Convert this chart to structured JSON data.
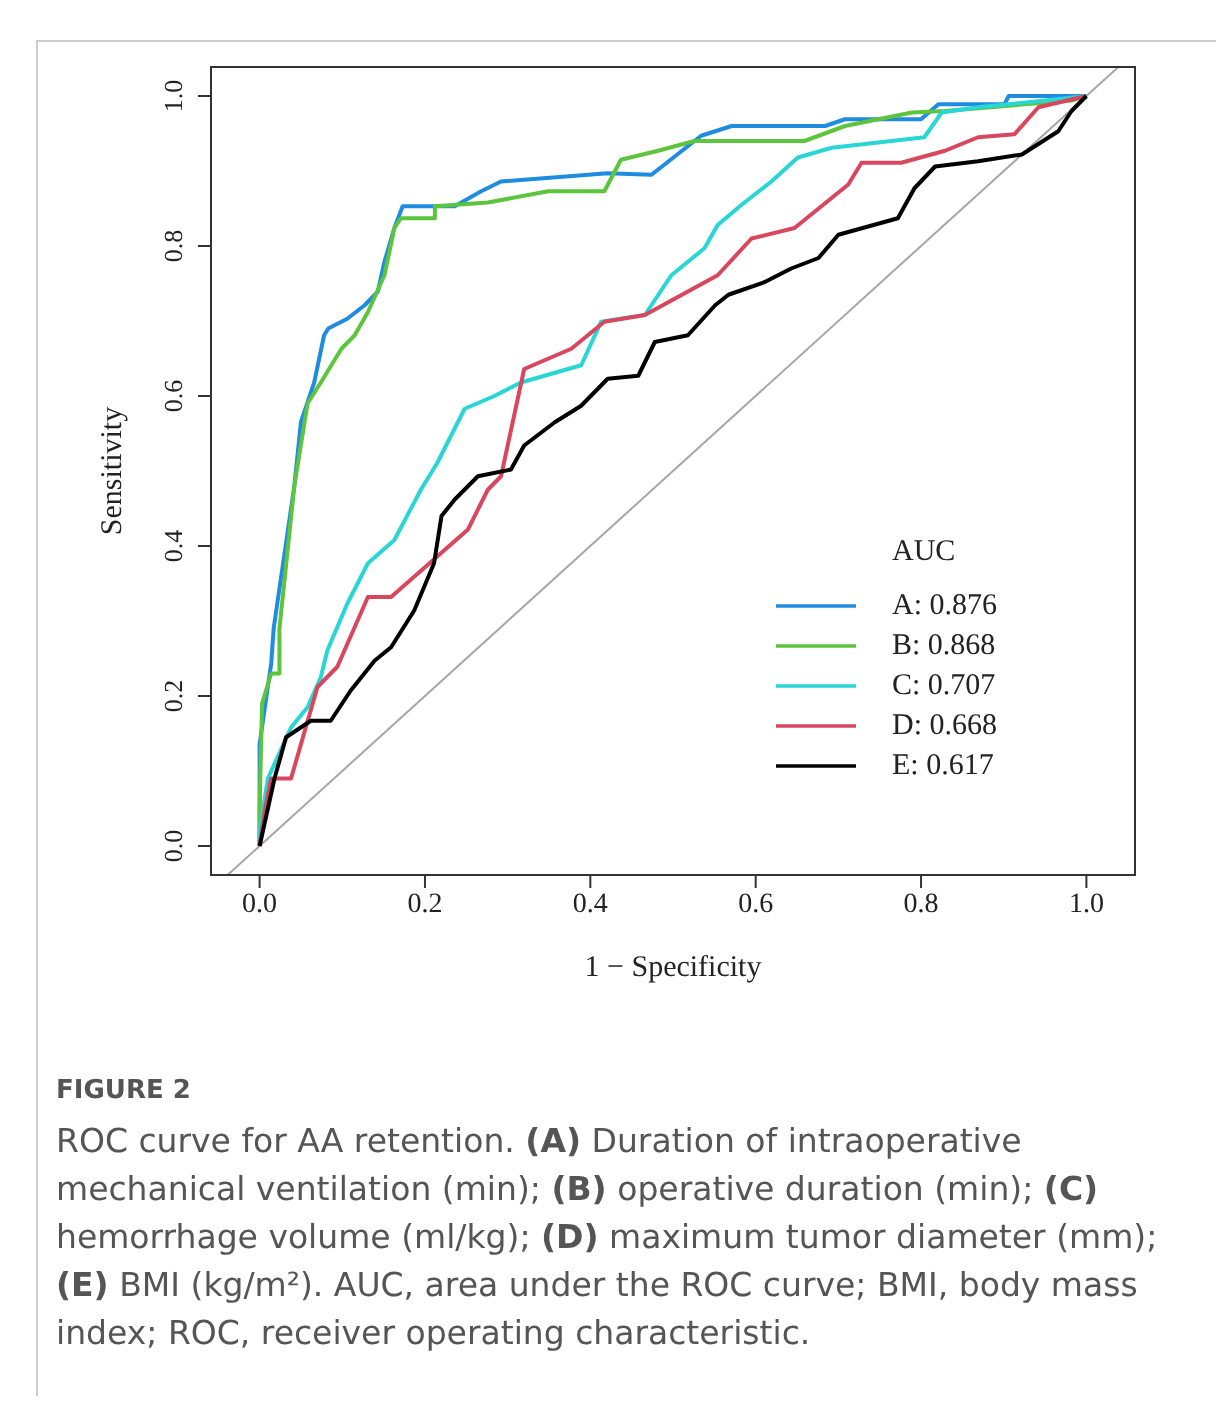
{
  "chart_data": {
    "type": "line",
    "xlabel": "1 − Specificity",
    "ylabel": "Sensitivity",
    "legend_title": "AUC",
    "legend": "bottom right",
    "grid": false,
    "marker": "none",
    "line_style": "solid",
    "xlim": [
      -0.06,
      1.06
    ],
    "ylim": [
      -0.04,
      1.04
    ],
    "xticks": [
      {
        "value": 0,
        "label": "0.0"
      },
      {
        "value": 0.2,
        "label": "0.2"
      },
      {
        "value": 0.4,
        "label": "0.4"
      },
      {
        "value": 0.6,
        "label": "0.6"
      },
      {
        "value": 0.8,
        "label": "0.8"
      },
      {
        "value": 1,
        "label": "1.0"
      }
    ],
    "yticks": [
      {
        "value": 0,
        "label": "0.0"
      },
      {
        "value": 0.2,
        "label": "0.2"
      },
      {
        "value": 0.4,
        "label": "0.4"
      },
      {
        "value": 0.6,
        "label": "0.6"
      },
      {
        "value": 0.8,
        "label": "0.8"
      },
      {
        "value": 1,
        "label": "1.0"
      }
    ],
    "series": [
      {
        "color": "#a6a6a6",
        "x": [
          -0.04,
          1.04
        ],
        "values": [
          -0.04,
          1.04
        ]
      },
      {
        "name": "A: 0.876",
        "color": "#1f8ce0",
        "x": [
          0,
          0,
          0,
          0.014,
          0.017,
          0.032,
          0.042,
          0.05,
          0.066,
          0.078,
          0.083,
          0.106,
          0.127,
          0.143,
          0.151,
          0.163,
          0.173,
          0.236,
          0.268,
          0.292,
          0.421,
          0.474,
          0.534,
          0.571,
          0.684,
          0.708,
          0.8,
          0.821,
          0.901,
          0.906,
          1.0
        ],
        "values": [
          0,
          0.03,
          0.136,
          0.243,
          0.29,
          0.404,
          0.48,
          0.565,
          0.618,
          0.681,
          0.69,
          0.703,
          0.721,
          0.739,
          0.779,
          0.824,
          0.853,
          0.853,
          0.873,
          0.886,
          0.897,
          0.895,
          0.947,
          0.96,
          0.96,
          0.969,
          0.969,
          0.989,
          0.989,
          1.0,
          1.0
        ]
      },
      {
        "name": "B: 0.868",
        "color": "#5cc43d",
        "x": [
          0,
          0,
          0.003,
          0.014,
          0.024,
          0.024,
          0.042,
          0.058,
          0.074,
          0.099,
          0.115,
          0.131,
          0.151,
          0.163,
          0.171,
          0.212,
          0.212,
          0.276,
          0.349,
          0.417,
          0.437,
          0.482,
          0.526,
          0.659,
          0.708,
          0.789,
          0.829,
          0.982,
          1.0
        ],
        "values": [
          0,
          0.05,
          0.19,
          0.23,
          0.23,
          0.29,
          0.48,
          0.59,
          0.618,
          0.663,
          0.681,
          0.712,
          0.761,
          0.824,
          0.837,
          0.837,
          0.853,
          0.858,
          0.873,
          0.873,
          0.915,
          0.927,
          0.94,
          0.94,
          0.96,
          0.978,
          0.98,
          0.994,
          1.0
        ]
      },
      {
        "name": "C: 0.707",
        "color": "#29d6d6",
        "x": [
          0,
          0,
          0.01,
          0.038,
          0.058,
          0.074,
          0.082,
          0.106,
          0.131,
          0.163,
          0.195,
          0.215,
          0.248,
          0.284,
          0.316,
          0.389,
          0.413,
          0.466,
          0.498,
          0.538,
          0.554,
          0.583,
          0.619,
          0.651,
          0.692,
          0.804,
          0.825,
          0.869,
          0.95,
          1.0
        ],
        "values": [
          0,
          0.02,
          0.09,
          0.158,
          0.185,
          0.225,
          0.261,
          0.323,
          0.377,
          0.408,
          0.475,
          0.511,
          0.583,
          0.6,
          0.618,
          0.641,
          0.699,
          0.708,
          0.761,
          0.797,
          0.828,
          0.855,
          0.886,
          0.918,
          0.931,
          0.945,
          0.978,
          0.985,
          0.994,
          1.0
        ]
      },
      {
        "name": "D: 0.668",
        "color": "#d9475e",
        "x": [
          0,
          0.006,
          0.014,
          0.038,
          0.07,
          0.094,
          0.131,
          0.159,
          0.252,
          0.276,
          0.292,
          0.32,
          0.377,
          0.417,
          0.466,
          0.554,
          0.595,
          0.647,
          0.712,
          0.728,
          0.776,
          0.829,
          0.869,
          0.913,
          0.942,
          1.0
        ],
        "values": [
          0,
          0.046,
          0.09,
          0.09,
          0.212,
          0.239,
          0.332,
          0.332,
          0.422,
          0.475,
          0.493,
          0.636,
          0.663,
          0.699,
          0.708,
          0.761,
          0.81,
          0.824,
          0.882,
          0.911,
          0.911,
          0.927,
          0.945,
          0.949,
          0.985,
          1.0
        ]
      },
      {
        "name": "E: 0.617",
        "color": "#000000",
        "x": [
          0,
          0.006,
          0.018,
          0.032,
          0.062,
          0.086,
          0.11,
          0.139,
          0.159,
          0.187,
          0.211,
          0.22,
          0.236,
          0.264,
          0.304,
          0.32,
          0.357,
          0.389,
          0.421,
          0.458,
          0.478,
          0.518,
          0.551,
          0.567,
          0.611,
          0.643,
          0.676,
          0.7,
          0.772,
          0.792,
          0.817,
          0.869,
          0.922,
          0.966,
          0.982,
          1.0
        ],
        "values": [
          0,
          0.03,
          0.09,
          0.145,
          0.167,
          0.167,
          0.207,
          0.247,
          0.265,
          0.314,
          0.377,
          0.44,
          0.462,
          0.493,
          0.502,
          0.534,
          0.565,
          0.587,
          0.623,
          0.627,
          0.672,
          0.681,
          0.721,
          0.735,
          0.752,
          0.77,
          0.784,
          0.815,
          0.837,
          0.877,
          0.906,
          0.913,
          0.922,
          0.953,
          0.98,
          1.0
        ]
      }
    ],
    "annotations": [
      "FIGURE 2",
      "ROC curve for AA retention. (A) Duration of intraoperative mechanical ventilation (min); (B) operative duration (min); (C) hemorrhage volume (ml/kg); (D) maximum tumor diameter (mm); (E) BMI (kg/m²). AUC, area under the ROC curve; BMI, body mass index; ROC, receiver operating characteristic."
    ]
  }
}
